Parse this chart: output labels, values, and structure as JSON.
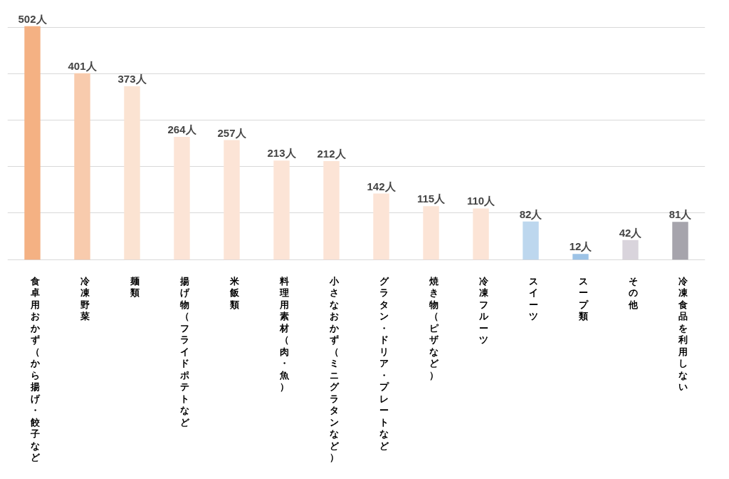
{
  "chart_data": {
    "type": "bar",
    "categories": [
      "食卓用おかず（から揚げ・餃子など",
      "冷凍野菜",
      "麺類",
      "揚げ物（フライドポテトなど",
      "米飯類",
      "料理用素材（肉・魚）",
      "小さなおかず（ミニグラタンなど）",
      "グラタン・ドリア・プレートなど",
      "焼き物（ピザなど）",
      "冷凍フルーツ",
      "スイーツ",
      "スープ類",
      "その他",
      "冷凍食品を利用しない"
    ],
    "values": [
      502,
      401,
      373,
      264,
      257,
      213,
      212,
      142,
      115,
      110,
      82,
      12,
      42,
      81
    ],
    "colors": [
      "#f4b183",
      "#f8cbad",
      "#fbe3d2",
      "#fce4d6",
      "#fce4d6",
      "#fce4d6",
      "#fce4d6",
      "#fce4d6",
      "#fce4d6",
      "#fce4d6",
      "#bdd7ee",
      "#9dc3e6",
      "#d9d4dc",
      "#a6a4ac"
    ],
    "value_labels": [
      "502人",
      "401人",
      "373人",
      "264人",
      "257人",
      "213人",
      "212人",
      "142人",
      "115人",
      "110人",
      "82人",
      "12人",
      "42人",
      "81人"
    ],
    "grid": "y",
    "tick_labels": false
  }
}
